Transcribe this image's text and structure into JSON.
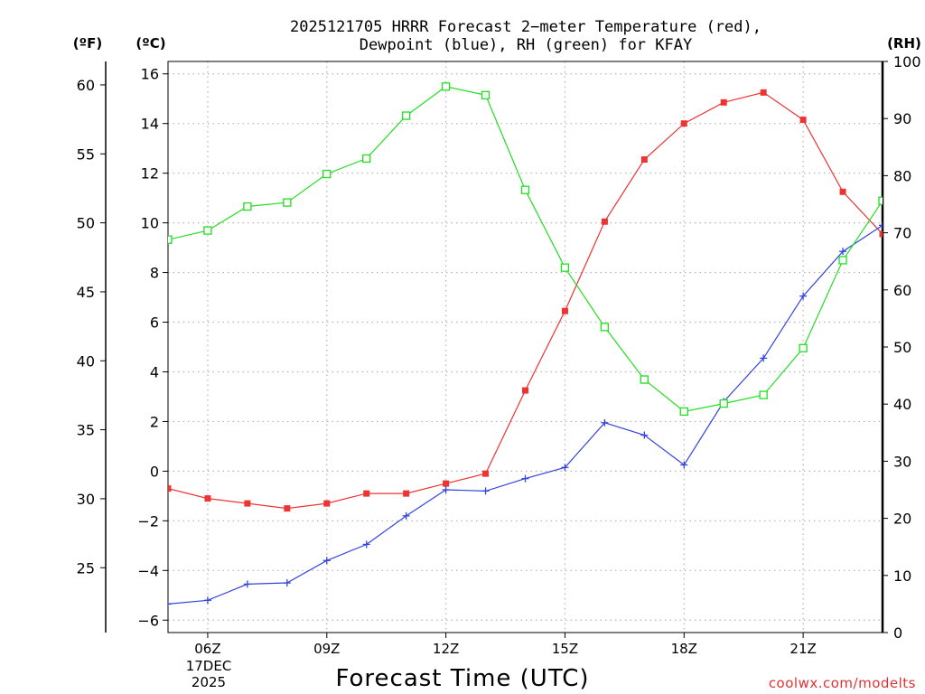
{
  "chart_data": {
    "type": "line",
    "title_line1": "2025121705 HRRR Forecast 2−meter Temperature (red),",
    "title_line2": "Dewpoint (blue), RH (green) for KFAY",
    "xlabel": "Forecast Time (UTC)",
    "date_day": "17DEC",
    "date_year": "2025",
    "credit": "coolwx.com/modelts",
    "unit_f": "(ºF)",
    "unit_c": "(ºC)",
    "unit_rh": "(RH)",
    "x_hours": [
      5,
      6,
      7,
      8,
      9,
      10,
      11,
      12,
      13,
      14,
      15,
      16,
      17,
      18,
      19,
      20,
      21,
      22,
      23
    ],
    "x_ticks": [
      {
        "hour": 6,
        "label": "06Z"
      },
      {
        "hour": 9,
        "label": "09Z"
      },
      {
        "hour": 12,
        "label": "12Z"
      },
      {
        "hour": 15,
        "label": "15Z"
      },
      {
        "hour": 18,
        "label": "18Z"
      },
      {
        "hour": 21,
        "label": "21Z"
      }
    ],
    "xlim": [
      5,
      23
    ],
    "ylim_c": [
      -6.5,
      16.5
    ],
    "ylim_rh": [
      0,
      100
    ],
    "ylim_f": [
      20.3,
      61.7
    ],
    "c_ticks": [
      {
        "v": -6,
        "label": "−6"
      },
      {
        "v": -4,
        "label": "−4"
      },
      {
        "v": -2,
        "label": "−2"
      },
      {
        "v": 0,
        "label": "0"
      },
      {
        "v": 2,
        "label": "2"
      },
      {
        "v": 4,
        "label": "4"
      },
      {
        "v": 6,
        "label": "6"
      },
      {
        "v": 8,
        "label": "8"
      },
      {
        "v": 10,
        "label": "10"
      },
      {
        "v": 12,
        "label": "12"
      },
      {
        "v": 14,
        "label": "14"
      },
      {
        "v": 16,
        "label": "16"
      }
    ],
    "f_ticks": [
      {
        "v": 25,
        "label": "25"
      },
      {
        "v": 30,
        "label": "30"
      },
      {
        "v": 35,
        "label": "35"
      },
      {
        "v": 40,
        "label": "40"
      },
      {
        "v": 45,
        "label": "45"
      },
      {
        "v": 50,
        "label": "50"
      },
      {
        "v": 55,
        "label": "55"
      },
      {
        "v": 60,
        "label": "60"
      }
    ],
    "rh_ticks": [
      {
        "v": 0,
        "label": "0"
      },
      {
        "v": 10,
        "label": "10"
      },
      {
        "v": 20,
        "label": "20"
      },
      {
        "v": 30,
        "label": "30"
      },
      {
        "v": 40,
        "label": "40"
      },
      {
        "v": 50,
        "label": "50"
      },
      {
        "v": 60,
        "label": "60"
      },
      {
        "v": 70,
        "label": "70"
      },
      {
        "v": 80,
        "label": "80"
      },
      {
        "v": 90,
        "label": "90"
      },
      {
        "v": 100,
        "label": "100"
      }
    ],
    "grid": true,
    "series": [
      {
        "name": "2-meter Temperature",
        "axis": "c",
        "color": "#ee3333",
        "marker": "filled-square",
        "values": [
          -0.7,
          -1.1,
          -1.3,
          -1.5,
          -1.3,
          -0.9,
          -0.9,
          -0.5,
          -0.1,
          3.25,
          6.45,
          10.05,
          12.55,
          14.0,
          14.85,
          15.25,
          14.15,
          11.25,
          9.55
        ]
      },
      {
        "name": "Dewpoint",
        "axis": "c",
        "color": "#3344dd",
        "marker": "plus",
        "values": [
          -5.35,
          -5.2,
          -4.55,
          -4.5,
          -3.6,
          -2.95,
          -1.8,
          -0.75,
          -0.8,
          -0.3,
          0.15,
          1.95,
          1.45,
          0.25,
          2.8,
          4.55,
          7.05,
          8.85,
          9.9
        ]
      },
      {
        "name": "RH",
        "axis": "rh",
        "color": "#22dd22",
        "marker": "open-square",
        "values": [
          68.8,
          70.4,
          74.6,
          75.3,
          80.3,
          83.0,
          90.5,
          95.6,
          94.1,
          77.5,
          63.9,
          53.5,
          44.3,
          38.7,
          40.1,
          41.6,
          49.8,
          65.2,
          75.6
        ]
      }
    ]
  }
}
